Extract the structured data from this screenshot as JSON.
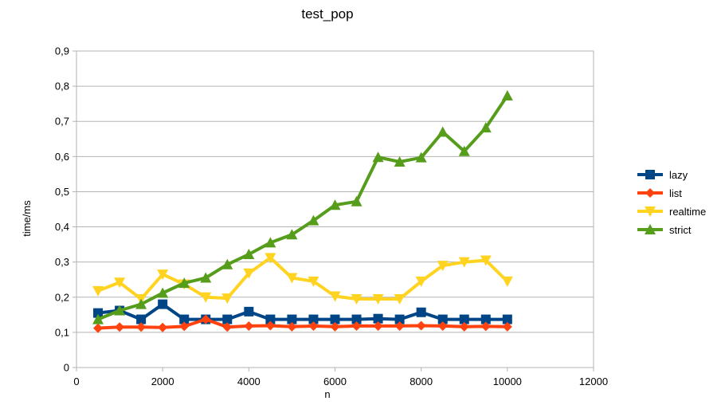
{
  "chart_data": {
    "type": "line",
    "title": "test_pop",
    "xlabel": "n",
    "ylabel": "time/ms",
    "xlim": [
      0,
      12000
    ],
    "ylim": [
      0,
      0.9
    ],
    "x_ticks": [
      0,
      2000,
      4000,
      6000,
      8000,
      10000,
      12000
    ],
    "x_tick_labels": [
      "0",
      "2000",
      "4000",
      "6000",
      "8000",
      "10000",
      "12000"
    ],
    "y_ticks": [
      0,
      0.1,
      0.2,
      0.3,
      0.4,
      0.5,
      0.6,
      0.7,
      0.8,
      0.9
    ],
    "y_tick_labels": [
      "0",
      "0,1",
      "0,2",
      "0,3",
      "0,4",
      "0,5",
      "0,6",
      "0,7",
      "0,8",
      "0,9"
    ],
    "grid": "horizontal",
    "legend_position": "right",
    "x": [
      500,
      1000,
      1500,
      2000,
      2500,
      3000,
      3500,
      4000,
      4500,
      5000,
      5500,
      6000,
      6500,
      7000,
      7500,
      8000,
      8500,
      9000,
      9500,
      10000
    ],
    "series": [
      {
        "name": "lazy",
        "color": "#004586",
        "marker": "square",
        "values": [
          0.155,
          0.162,
          0.137,
          0.18,
          0.137,
          0.137,
          0.137,
          0.159,
          0.137,
          0.137,
          0.137,
          0.137,
          0.137,
          0.139,
          0.137,
          0.157,
          0.137,
          0.137,
          0.137,
          0.137
        ]
      },
      {
        "name": "list",
        "color": "#ff420e",
        "marker": "diamond",
        "values": [
          0.112,
          0.115,
          0.115,
          0.114,
          0.117,
          0.137,
          0.115,
          0.118,
          0.119,
          0.116,
          0.118,
          0.116,
          0.118,
          0.118,
          0.118,
          0.119,
          0.118,
          0.116,
          0.117,
          0.116
        ]
      },
      {
        "name": "realtime",
        "color": "#ffd320",
        "marker": "triangle-down",
        "values": [
          0.218,
          0.242,
          0.195,
          0.265,
          0.237,
          0.2,
          0.197,
          0.268,
          0.312,
          0.255,
          0.245,
          0.203,
          0.195,
          0.195,
          0.195,
          0.245,
          0.29,
          0.3,
          0.305,
          0.245
        ]
      },
      {
        "name": "strict",
        "color": "#579d1c",
        "marker": "triangle-up",
        "values": [
          0.137,
          0.162,
          0.18,
          0.212,
          0.24,
          0.255,
          0.293,
          0.322,
          0.355,
          0.378,
          0.418,
          0.462,
          0.472,
          0.598,
          0.585,
          0.597,
          0.67,
          0.615,
          0.682,
          0.773
        ]
      }
    ]
  }
}
